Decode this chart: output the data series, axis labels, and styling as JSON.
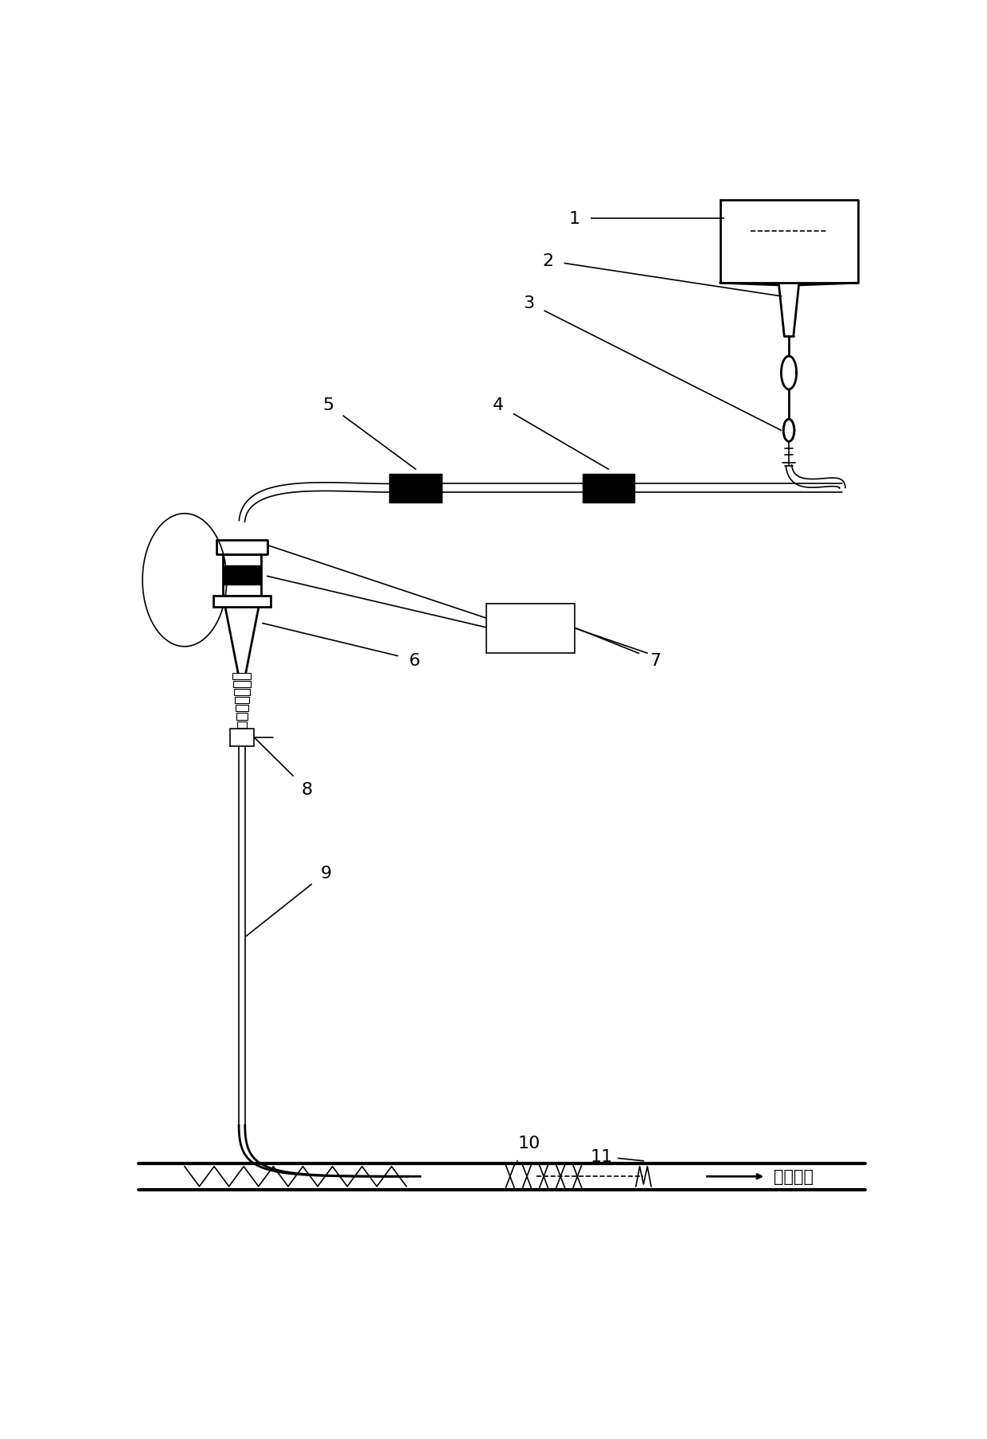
{
  "bg_color": "#ffffff",
  "line_color": "#000000",
  "blood_flow_text": "血流方向",
  "figsize": [
    12.4,
    18.08
  ],
  "dpi": 100
}
